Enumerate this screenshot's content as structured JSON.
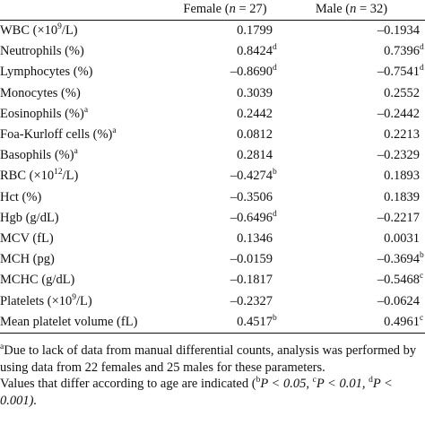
{
  "header": {
    "female": "Female (",
    "female_n": "n",
    "female_count": " = 27)",
    "male": "Male (",
    "male_n": "n",
    "male_count": " = 32)"
  },
  "rows": [
    {
      "label": "WBC (×10",
      "label_sup": "9",
      "label_tail": "/L)",
      "female": "0.1799",
      "female_sup": "",
      "male": "–0.1934",
      "male_sup": ""
    },
    {
      "label": "Neutrophils (%)",
      "label_sup": "",
      "label_tail": "",
      "female": "0.8424",
      "female_sup": "d",
      "male": "0.7396",
      "male_sup": "d"
    },
    {
      "label": "Lymphocytes (%)",
      "label_sup": "",
      "label_tail": "",
      "female": "–0.8690",
      "female_sup": "d",
      "male": "–0.7541",
      "male_sup": "d"
    },
    {
      "label": "Monocytes (%)",
      "label_sup": "",
      "label_tail": "",
      "female": "0.3039",
      "female_sup": "",
      "male": "0.2552",
      "male_sup": ""
    },
    {
      "label": "Eosinophils (%)",
      "label_sup": "a",
      "label_tail": "",
      "female": "0.2442",
      "female_sup": "",
      "male": "–0.2442",
      "male_sup": ""
    },
    {
      "label": "Foa-Kurloff cells (%)",
      "label_sup": "a",
      "label_tail": "",
      "female": "0.0812",
      "female_sup": "",
      "male": "0.2213",
      "male_sup": ""
    },
    {
      "label": "Basophils (%)",
      "label_sup": "a",
      "label_tail": "",
      "female": "0.2814",
      "female_sup": "",
      "male": "–0.2329",
      "male_sup": ""
    },
    {
      "label": "RBC (×10",
      "label_sup": "12",
      "label_tail": "/L)",
      "female": "–0.4274",
      "female_sup": "b",
      "male": "0.1893",
      "male_sup": ""
    },
    {
      "label": "Hct (%)",
      "label_sup": "",
      "label_tail": "",
      "female": "–0.3506",
      "female_sup": "",
      "male": "0.1839",
      "male_sup": ""
    },
    {
      "label": "Hgb (g/dL)",
      "label_sup": "",
      "label_tail": "",
      "female": "–0.6496",
      "female_sup": "d",
      "male": "–0.2217",
      "male_sup": ""
    },
    {
      "label": "MCV (fL)",
      "label_sup": "",
      "label_tail": "",
      "female": "0.1346",
      "female_sup": "",
      "male": "0.0031",
      "male_sup": ""
    },
    {
      "label": "MCH (pg)",
      "label_sup": "",
      "label_tail": "",
      "female": "–0.0159",
      "female_sup": "",
      "male": "–0.3694",
      "male_sup": "b"
    },
    {
      "label": "MCHC (g/dL)",
      "label_sup": "",
      "label_tail": "",
      "female": "–0.1817",
      "female_sup": "",
      "male": "–0.5468",
      "male_sup": "c"
    },
    {
      "label": "Platelets (×10",
      "label_sup": "9",
      "label_tail": "/L)",
      "female": "–0.2327",
      "female_sup": "",
      "male": "–0.0624",
      "male_sup": ""
    },
    {
      "label": "Mean platelet volume (fL)",
      "label_sup": "",
      "label_tail": "",
      "female": "0.4517",
      "female_sup": "b",
      "male": "0.4961",
      "male_sup": "c"
    }
  ],
  "footnotes": {
    "note_a_marker": "a",
    "note_a_text": "Due to lack of data from manual differential counts, analysis was performed by using data from 22 females and 25 males for these parameters.",
    "note_age_text": "Values that differ according to age are indicated (",
    "p_b_marker": "b",
    "p_b_text": "P < 0.05, ",
    "p_c_marker": "c",
    "p_c_text": "P < 0.01, ",
    "p_d_marker": "d",
    "p_d_text": "P < 0.001)."
  }
}
